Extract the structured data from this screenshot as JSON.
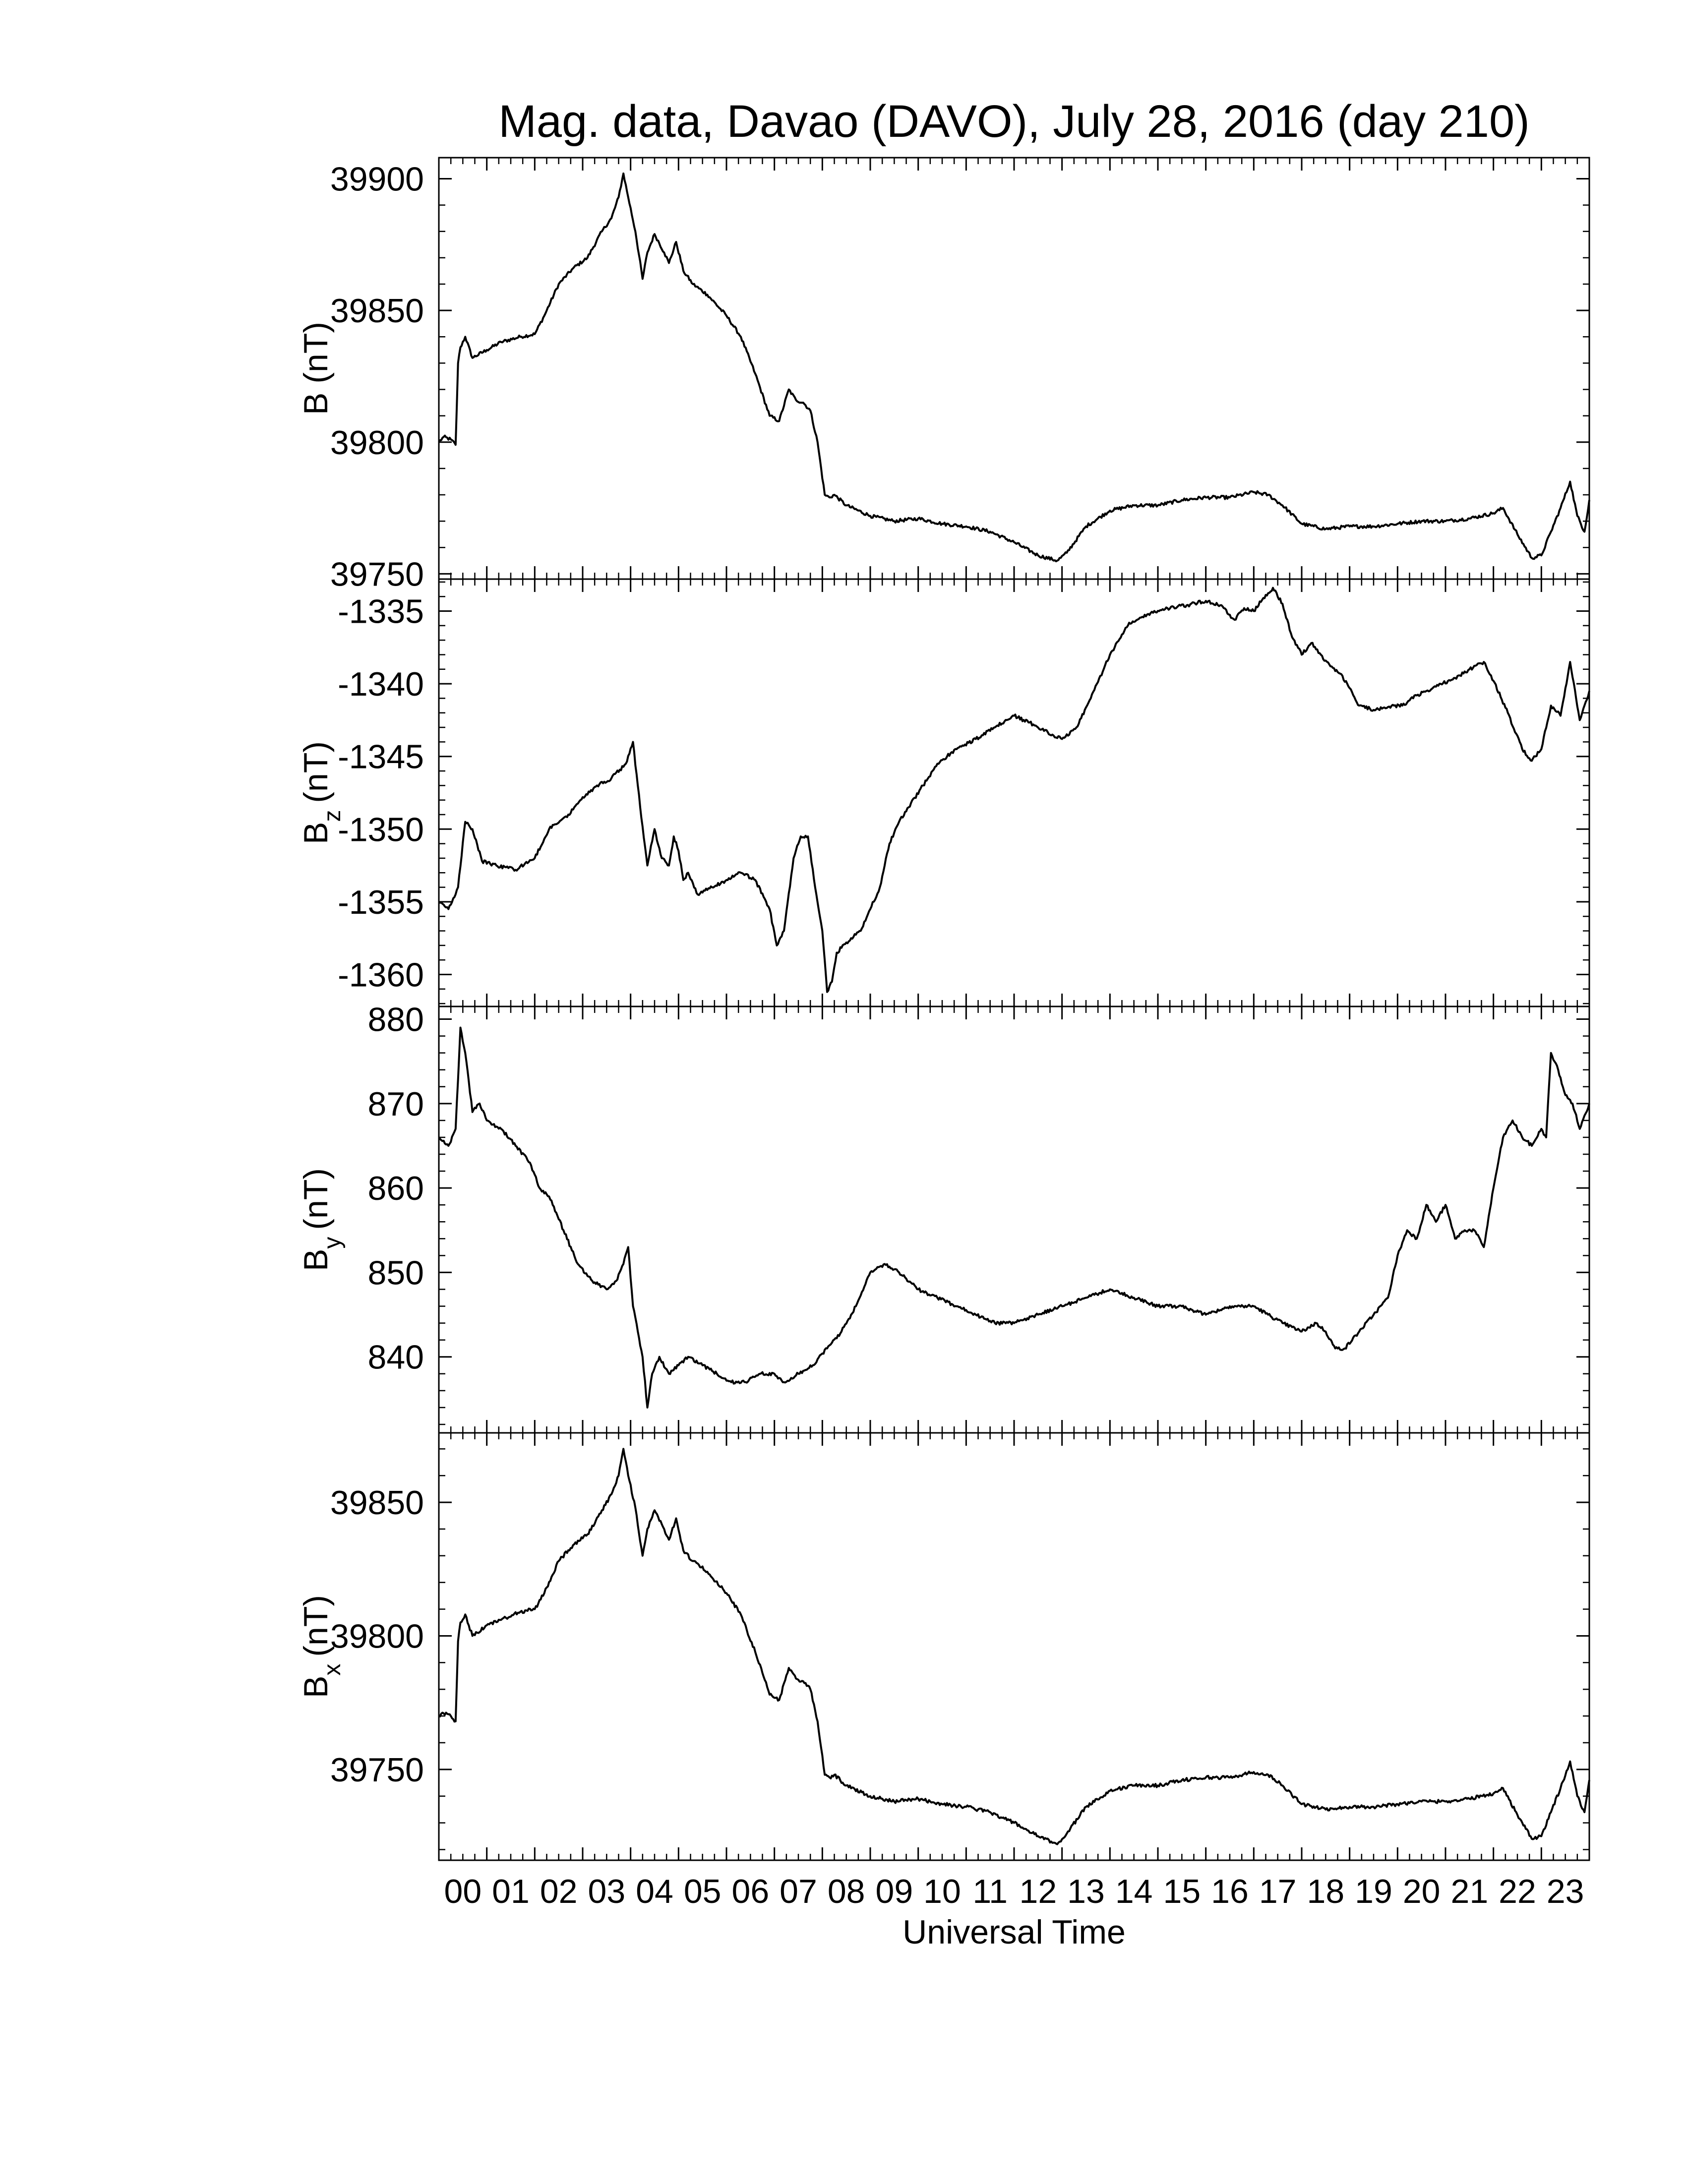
{
  "chart_data": {
    "type": "line",
    "title": "Mag. data, Davao (DAVO), July 28, 2016 (day 210)",
    "xlabel": "Universal Time",
    "xlim": [
      0,
      24
    ],
    "x_tick_labels": [
      "00",
      "01",
      "02",
      "03",
      "04",
      "05",
      "06",
      "07",
      "08",
      "09",
      "10",
      "11",
      "12",
      "13",
      "14",
      "15",
      "16",
      "17",
      "18",
      "19",
      "20",
      "21",
      "22",
      "23"
    ],
    "grid": false,
    "panels": [
      {
        "ylabel_main": "B",
        "ylabel_sub": "",
        "ylabel_unit": "(nT)",
        "ylim": [
          39748,
          39908
        ],
        "yticks": [
          39750,
          39800,
          39850,
          39900
        ],
        "series": [
          {
            "x": [
              0,
              0.1,
              0.25,
              0.35,
              0.4,
              0.45,
              0.55,
              0.7,
              1.0,
              1.3,
              1.7,
              2.0,
              2.2,
              2.5,
              2.8,
              3.1,
              3.4,
              3.6,
              3.75,
              3.85,
              3.95,
              4.1,
              4.25,
              4.35,
              4.5,
              4.7,
              4.8,
              4.95,
              5.1,
              5.3,
              5.6,
              6.0,
              6.3,
              6.6,
              6.9,
              7.1,
              7.3,
              7.45,
              7.6,
              7.75,
              7.9,
              8.05,
              8.15,
              8.25,
              8.5,
              9.0,
              9.5,
              10.0,
              10.5,
              11.0,
              11.5,
              12.0,
              12.5,
              12.9,
              13.1,
              13.5,
              14.0,
              14.5,
              15.0,
              15.5,
              16.0,
              16.5,
              17.0,
              17.3,
              17.6,
              18.0,
              18.5,
              19.0,
              19.5,
              20.0,
              20.5,
              21.0,
              21.5,
              22.0,
              22.2,
              22.5,
              22.8,
              23.0,
              23.2,
              23.4,
              23.6,
              23.75,
              23.9,
              24.0
            ],
            "y": [
              39800,
              39802,
              39801,
              39799,
              39830,
              39836,
              39840,
              39832,
              39835,
              39838,
              39840,
              39841,
              39848,
              39860,
              39866,
              39870,
              39880,
              39885,
              39893,
              39902,
              39893,
              39880,
              39862,
              39872,
              39879,
              39872,
              39868,
              39876,
              39865,
              39860,
              39856,
              39848,
              39840,
              39826,
              39810,
              39808,
              39820,
              39816,
              39815,
              39812,
              39800,
              39780,
              39779,
              39780,
              39776,
              39772,
              39770,
              39771,
              39769,
              39768,
              39766,
              39762,
              39757,
              39755,
              39758,
              39768,
              39774,
              39776,
              39776,
              39778,
              39779,
              39779,
              39781,
              39780,
              39776,
              39769,
              39767,
              39768,
              39768,
              39769,
              39770,
              39770,
              39771,
              39773,
              39775,
              39765,
              39756,
              39757,
              39766,
              39775,
              39785,
              39772,
              39766,
              39778
            ]
          }
        ]
      },
      {
        "ylabel_main": "B",
        "ylabel_sub": "z",
        "ylabel_unit": "(nT)",
        "ylim": [
          -1362.2,
          -1332.8
        ],
        "yticks": [
          -1360,
          -1355,
          -1350,
          -1345,
          -1340,
          -1335
        ],
        "series": [
          {
            "x": [
              0,
              0.2,
              0.4,
              0.55,
              0.7,
              0.9,
              1.2,
              1.6,
              2.0,
              2.3,
              2.7,
              3.0,
              3.3,
              3.6,
              3.9,
              4.05,
              4.2,
              4.35,
              4.5,
              4.65,
              4.8,
              4.9,
              5.0,
              5.1,
              5.2,
              5.4,
              5.7,
              6.0,
              6.3,
              6.6,
              6.9,
              7.05,
              7.2,
              7.4,
              7.55,
              7.7,
              7.85,
              8.0,
              8.1,
              8.2,
              8.3,
              8.5,
              8.8,
              9.0,
              9.2,
              9.4,
              9.6,
              9.8,
              10.1,
              10.4,
              10.8,
              11.2,
              11.6,
              12.0,
              12.4,
              12.8,
              13.0,
              13.3,
              13.6,
              14.0,
              14.4,
              14.8,
              15.2,
              15.6,
              16.0,
              16.3,
              16.6,
              16.8,
              17.0,
              17.2,
              17.4,
              17.6,
              17.8,
              18.0,
              18.2,
              18.4,
              18.6,
              18.8,
              19.0,
              19.2,
              19.5,
              19.8,
              20.1,
              20.4,
              20.8,
              21.2,
              21.5,
              21.8,
              22.0,
              22.3,
              22.6,
              22.8,
              23.0,
              23.2,
              23.4,
              23.6,
              23.8,
              24.0
            ],
            "y": [
              -1355,
              -1355.5,
              -1354,
              -1349.5,
              -1350,
              -1352.2,
              -1352.5,
              -1352.8,
              -1352,
              -1350,
              -1349,
              -1347.8,
              -1347,
              -1346.5,
              -1345.5,
              -1344,
              -1348.5,
              -1352.5,
              -1350,
              -1352,
              -1352.5,
              -1350.5,
              -1351.5,
              -1353.5,
              -1353,
              -1354.5,
              -1354,
              -1353.5,
              -1353,
              -1353.5,
              -1355.5,
              -1358,
              -1357,
              -1352,
              -1350.5,
              -1350.5,
              -1354,
              -1357,
              -1361.2,
              -1360.5,
              -1358.5,
              -1357.8,
              -1357,
              -1355.5,
              -1354,
              -1351,
              -1349.5,
              -1348.5,
              -1347,
              -1345.5,
              -1344.5,
              -1343.8,
              -1343,
              -1342.2,
              -1342.8,
              -1343.5,
              -1343.8,
              -1343,
              -1341,
              -1338,
              -1335.8,
              -1335.2,
              -1334.8,
              -1334.6,
              -1334.3,
              -1334.6,
              -1335.6,
              -1334.8,
              -1335,
              -1334.1,
              -1333.4,
              -1334.5,
              -1336.8,
              -1338,
              -1337.2,
              -1338,
              -1338.8,
              -1339.3,
              -1340.3,
              -1341.5,
              -1341.8,
              -1341.6,
              -1341.5,
              -1340.8,
              -1340.2,
              -1339.6,
              -1339,
              -1338.5,
              -1339.8,
              -1342,
              -1344.5,
              -1345.3,
              -1344.5,
              -1341.5,
              -1342.2,
              -1338.5,
              -1342.5,
              -1340.5
            ]
          }
        ]
      },
      {
        "ylabel_main": "B",
        "ylabel_sub": "y",
        "ylabel_unit": "(nT)",
        "ylim": [
          831,
          881.5
        ],
        "yticks": [
          840,
          850,
          860,
          870,
          880
        ],
        "series": [
          {
            "x": [
              0,
              0.2,
              0.35,
              0.45,
              0.55,
              0.7,
              0.85,
              1.0,
              1.3,
              1.6,
              1.9,
              2.1,
              2.3,
              2.6,
              2.9,
              3.2,
              3.5,
              3.7,
              3.85,
              3.95,
              4.05,
              4.15,
              4.25,
              4.35,
              4.45,
              4.6,
              4.8,
              5.0,
              5.2,
              5.5,
              5.8,
              6.1,
              6.4,
              6.7,
              7.0,
              7.2,
              7.5,
              7.8,
              8.1,
              8.4,
              8.7,
              9.0,
              9.3,
              9.6,
              10.0,
              10.4,
              10.8,
              11.2,
              11.6,
              12.0,
              12.5,
              13.0,
              13.5,
              14.0,
              14.5,
              15.0,
              15.5,
              16.0,
              16.5,
              17.0,
              17.3,
              17.6,
              18.0,
              18.3,
              18.5,
              18.7,
              18.9,
              19.2,
              19.5,
              19.8,
              20.0,
              20.2,
              20.4,
              20.6,
              20.8,
              21.0,
              21.2,
              21.4,
              21.6,
              21.8,
              22.0,
              22.2,
              22.4,
              22.6,
              22.8,
              23.0,
              23.1,
              23.2,
              23.35,
              23.5,
              23.65,
              23.8,
              24.0
            ],
            "y": [
              866,
              865,
              867,
              879,
              876,
              869,
              870,
              868,
              867,
              865,
              863,
              860,
              859,
              855,
              851,
              849,
              848,
              849,
              851,
              853,
              846,
              843,
              840,
              834,
              838,
              840,
              838,
              839,
              840,
              839,
              838,
              837,
              837,
              838,
              838,
              837,
              838,
              839,
              841,
              843,
              846,
              850,
              851,
              850,
              848,
              847,
              846,
              845,
              844,
              844,
              845,
              846,
              847,
              848,
              847,
              846,
              846,
              845,
              846,
              846,
              845,
              844,
              843,
              844,
              843,
              841,
              841,
              843,
              845,
              847,
              852,
              855,
              854,
              858,
              856,
              858,
              854,
              855,
              855,
              853,
              860,
              866,
              868,
              866,
              865,
              867,
              866,
              876,
              874,
              871,
              870,
              867,
              870
            ]
          }
        ]
      },
      {
        "ylabel_main": "B",
        "ylabel_sub": "x",
        "ylabel_unit": "(nT)",
        "ylim": [
          39716,
          39876
        ],
        "yticks": [
          39750,
          39800,
          39850
        ],
        "series": [
          {
            "x": [
              0,
              0.1,
              0.25,
              0.35,
              0.4,
              0.45,
              0.55,
              0.7,
              1.0,
              1.3,
              1.7,
              2.0,
              2.2,
              2.5,
              2.8,
              3.1,
              3.4,
              3.6,
              3.75,
              3.85,
              3.95,
              4.1,
              4.25,
              4.35,
              4.5,
              4.7,
              4.8,
              4.95,
              5.1,
              5.3,
              5.6,
              6.0,
              6.3,
              6.6,
              6.9,
              7.1,
              7.3,
              7.45,
              7.6,
              7.75,
              7.9,
              8.05,
              8.15,
              8.25,
              8.5,
              9.0,
              9.5,
              10.0,
              10.5,
              11.0,
              11.5,
              12.0,
              12.5,
              12.9,
              13.1,
              13.5,
              14.0,
              14.5,
              15.0,
              15.5,
              16.0,
              16.5,
              17.0,
              17.3,
              17.6,
              18.0,
              18.5,
              19.0,
              19.5,
              20.0,
              20.5,
              21.0,
              21.5,
              22.0,
              22.2,
              22.5,
              22.8,
              23.0,
              23.2,
              23.4,
              23.6,
              23.75,
              23.9,
              24.0
            ],
            "y": [
              39770,
              39771,
              39770,
              39768,
              39798,
              39805,
              39808,
              39800,
              39804,
              39806,
              39809,
              39810,
              39816,
              39828,
              39834,
              39838,
              39847,
              39853,
              39860,
              39870,
              39860,
              39848,
              39830,
              39840,
              39847,
              39840,
              39836,
              39844,
              39832,
              39828,
              39824,
              39816,
              39808,
              39794,
              39778,
              39776,
              39788,
              39784,
              39783,
              39780,
              39768,
              39748,
              39747,
              39748,
              39744,
              39740,
              39738,
              39739,
              39737,
              39736,
              39734,
              39730,
              39725,
              39722,
              39726,
              39736,
              39742,
              39744,
              39744,
              39746,
              39747,
              39747,
              39749,
              39748,
              39744,
              39737,
              39735,
              39736,
              39736,
              39737,
              39738,
              39738,
              39739,
              39741,
              39743,
              39733,
              39724,
              39725,
              39734,
              39743,
              39753,
              39740,
              39734,
              39746
            ]
          }
        ]
      }
    ]
  }
}
